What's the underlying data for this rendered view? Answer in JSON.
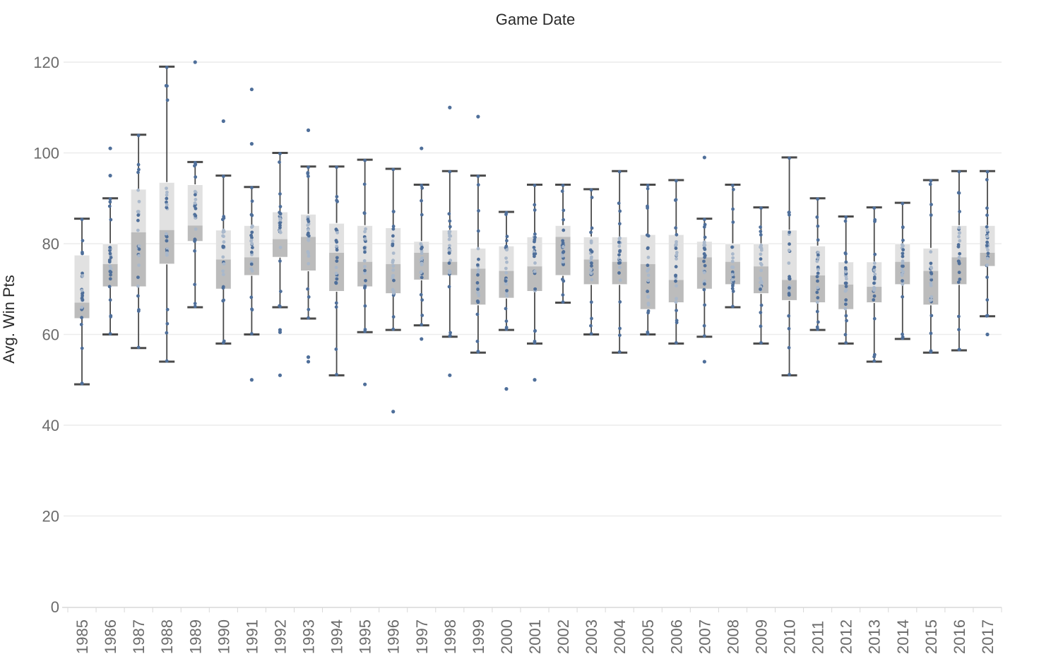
{
  "chart_data": {
    "type": "box",
    "title": "Game Date",
    "xlabel": "",
    "ylabel": "Avg. Win Pts",
    "ylim": [
      0,
      120
    ],
    "yticks": [
      0,
      20,
      40,
      60,
      80,
      100,
      120
    ],
    "grid": true,
    "colors": {
      "upper_box": "#e1e1e1",
      "lower_box": "#bcbcbc",
      "whisker": "#4a4a4a",
      "point": "#4f6f9a",
      "point_inside": "#a9b8cb",
      "grid": "#ececec"
    },
    "categories": [
      "1985",
      "1986",
      "1987",
      "1988",
      "1989",
      "1990",
      "1991",
      "1992",
      "1993",
      "1994",
      "1995",
      "1996",
      "1997",
      "1998",
      "1999",
      "2000",
      "2001",
      "2002",
      "2003",
      "2004",
      "2005",
      "2006",
      "2007",
      "2008",
      "2009",
      "2010",
      "2011",
      "2012",
      "2013",
      "2014",
      "2015",
      "2016",
      "2017"
    ],
    "boxes": [
      {
        "min": 49,
        "q1": 63.5,
        "median": 67,
        "q3": 77.5,
        "max": 85.5
      },
      {
        "min": 60,
        "q1": 70.5,
        "median": 75.5,
        "q3": 80,
        "max": 90
      },
      {
        "min": 57,
        "q1": 70.5,
        "median": 82.5,
        "q3": 92,
        "max": 104
      },
      {
        "min": 54,
        "q1": 75.5,
        "median": 83,
        "q3": 93.5,
        "max": 119
      },
      {
        "min": 66,
        "q1": 80.5,
        "median": 84,
        "q3": 93,
        "max": 98
      },
      {
        "min": 58,
        "q1": 70,
        "median": 76.5,
        "q3": 83,
        "max": 95
      },
      {
        "min": 60,
        "q1": 73,
        "median": 77,
        "q3": 84,
        "max": 92.5
      },
      {
        "min": 66,
        "q1": 77,
        "median": 81,
        "q3": 87,
        "max": 100
      },
      {
        "min": 63.5,
        "q1": 74,
        "median": 81.5,
        "q3": 86.5,
        "max": 97
      },
      {
        "min": 51,
        "q1": 69.5,
        "median": 78,
        "q3": 84.5,
        "max": 97
      },
      {
        "min": 60.5,
        "q1": 70.5,
        "median": 76,
        "q3": 84,
        "max": 98.5
      },
      {
        "min": 61,
        "q1": 69,
        "median": 75.5,
        "q3": 83.5,
        "max": 96.5
      },
      {
        "min": 62,
        "q1": 72,
        "median": 78,
        "q3": 80.5,
        "max": 93
      },
      {
        "min": 59.5,
        "q1": 73,
        "median": 76,
        "q3": 83,
        "max": 96
      },
      {
        "min": 56,
        "q1": 66.5,
        "median": 74.5,
        "q3": 79,
        "max": 95
      },
      {
        "min": 61,
        "q1": 68,
        "median": 74,
        "q3": 79.5,
        "max": 87
      },
      {
        "min": 58,
        "q1": 69.5,
        "median": 75,
        "q3": 81.5,
        "max": 93
      },
      {
        "min": 67,
        "q1": 73,
        "median": 81.5,
        "q3": 84,
        "max": 93
      },
      {
        "min": 60,
        "q1": 71,
        "median": 76.5,
        "q3": 81.5,
        "max": 92
      },
      {
        "min": 56,
        "q1": 71,
        "median": 76,
        "q3": 81.5,
        "max": 96
      },
      {
        "min": 60,
        "q1": 65.5,
        "median": 75.5,
        "q3": 82,
        "max": 93
      },
      {
        "min": 58,
        "q1": 67,
        "median": 72,
        "q3": 82,
        "max": 94
      },
      {
        "min": 59.5,
        "q1": 70,
        "median": 77,
        "q3": 80.5,
        "max": 85.5
      },
      {
        "min": 66,
        "q1": 71,
        "median": 76,
        "q3": 80,
        "max": 93
      },
      {
        "min": 58,
        "q1": 69,
        "median": 75,
        "q3": 80,
        "max": 88
      },
      {
        "min": 51,
        "q1": 67.5,
        "median": 72,
        "q3": 83,
        "max": 99
      },
      {
        "min": 61,
        "q1": 67,
        "median": 73,
        "q3": 79.5,
        "max": 90
      },
      {
        "min": 58,
        "q1": 65.5,
        "median": 71,
        "q3": 76,
        "max": 86
      },
      {
        "min": 54,
        "q1": 67,
        "median": 70.5,
        "q3": 76,
        "max": 88
      },
      {
        "min": 59,
        "q1": 71,
        "median": 76,
        "q3": 80,
        "max": 89
      },
      {
        "min": 56,
        "q1": 66.5,
        "median": 74,
        "q3": 79,
        "max": 94
      },
      {
        "min": 56.5,
        "q1": 71,
        "median": 77,
        "q3": 84,
        "max": 96
      },
      {
        "min": 64,
        "q1": 75,
        "median": 78,
        "q3": 84,
        "max": 96
      }
    ],
    "outliers": [
      {
        "year": "1986",
        "value": 101
      },
      {
        "year": "1986",
        "value": 95
      },
      {
        "year": "1989",
        "value": 120
      },
      {
        "year": "1990",
        "value": 107
      },
      {
        "year": "1991",
        "value": 114
      },
      {
        "year": "1991",
        "value": 102
      },
      {
        "year": "1991",
        "value": 50
      },
      {
        "year": "1992",
        "value": 61
      },
      {
        "year": "1992",
        "value": 60.5
      },
      {
        "year": "1992",
        "value": 51
      },
      {
        "year": "1993",
        "value": 105
      },
      {
        "year": "1993",
        "value": 55
      },
      {
        "year": "1993",
        "value": 54
      },
      {
        "year": "1995",
        "value": 49
      },
      {
        "year": "1996",
        "value": 43
      },
      {
        "year": "1997",
        "value": 101
      },
      {
        "year": "1997",
        "value": 59
      },
      {
        "year": "1998",
        "value": 110
      },
      {
        "year": "1998",
        "value": 51
      },
      {
        "year": "1999",
        "value": 108
      },
      {
        "year": "2000",
        "value": 48
      },
      {
        "year": "2001",
        "value": 50
      },
      {
        "year": "2007",
        "value": 99
      },
      {
        "year": "2007",
        "value": 54
      },
      {
        "year": "2017",
        "value": 60
      }
    ]
  }
}
